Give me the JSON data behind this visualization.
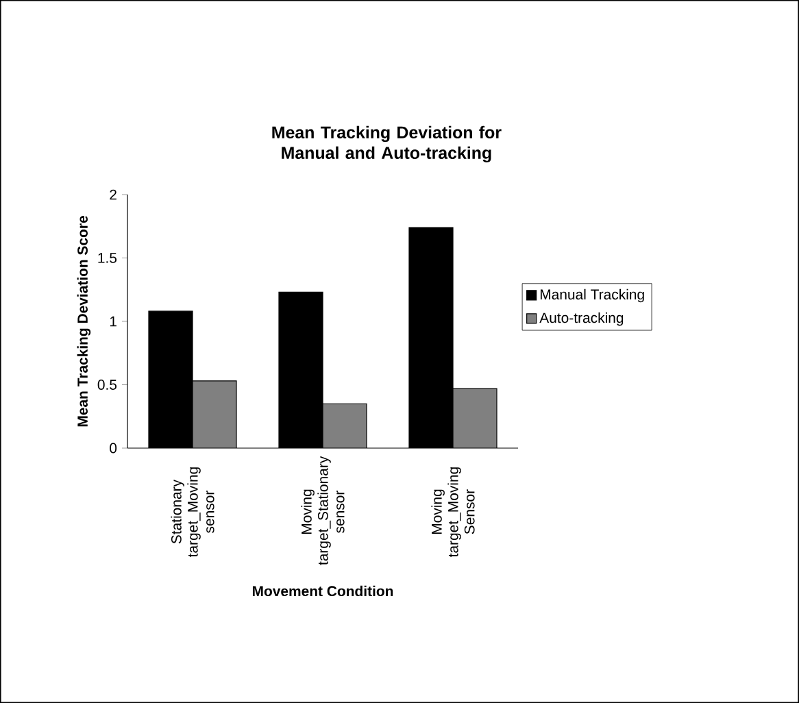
{
  "chart_data": {
    "type": "bar",
    "title": "Mean Tracking Deviation for Manual and Auto-tracking",
    "xlabel": "Movement Condition",
    "ylabel": "Mean Tracking Deviation Score",
    "categories": [
      "Stationary target_Moving sensor",
      "Moving target_Stationary sensor",
      "Moving target_Moving Sensor"
    ],
    "series": [
      {
        "name": "Manual Tracking",
        "color": "#000000",
        "values": [
          1.08,
          1.23,
          1.74
        ]
      },
      {
        "name": "Auto-tracking",
        "color": "#808080",
        "values": [
          0.53,
          0.35,
          0.47
        ]
      }
    ],
    "ylim": [
      0,
      2
    ],
    "yticks": [
      0,
      0.5,
      1,
      1.5,
      2
    ],
    "grid": false,
    "legend": "right"
  }
}
